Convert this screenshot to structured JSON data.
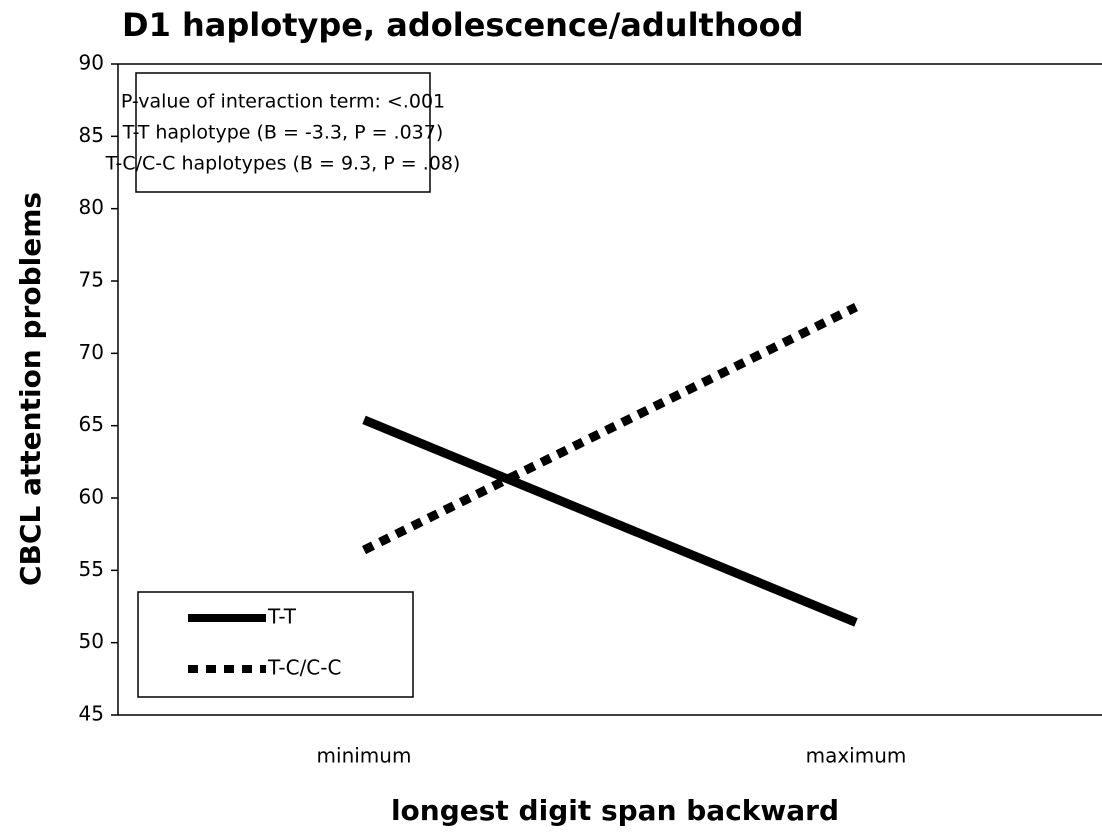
{
  "chart_data": {
    "type": "line",
    "title": "D1 haplotype, adolescence/adulthood",
    "xlabel": "longest digit span backward",
    "ylabel": "CBCL attention problems",
    "annotations": [
      "P-value of interaction term: <.001",
      "T-T haplotype (B = -3.3, P = .037)",
      "T-C/C-C haplotypes (B = 9.3, P = .08)"
    ],
    "categories": [
      "minimum",
      "maximum"
    ],
    "series": [
      {
        "name": "T-T",
        "color": "#000000",
        "dash": "solid",
        "values": [
          65.4,
          51.4
        ]
      },
      {
        "name": "T-C/C-C",
        "color": "#000000",
        "dash": "dotted",
        "values": [
          56.4,
          73.2
        ]
      }
    ],
    "ylim": [
      45,
      90
    ],
    "yticks": [
      45,
      50,
      55,
      60,
      65,
      70,
      75,
      80,
      85,
      90
    ],
    "legend": "lower left"
  }
}
